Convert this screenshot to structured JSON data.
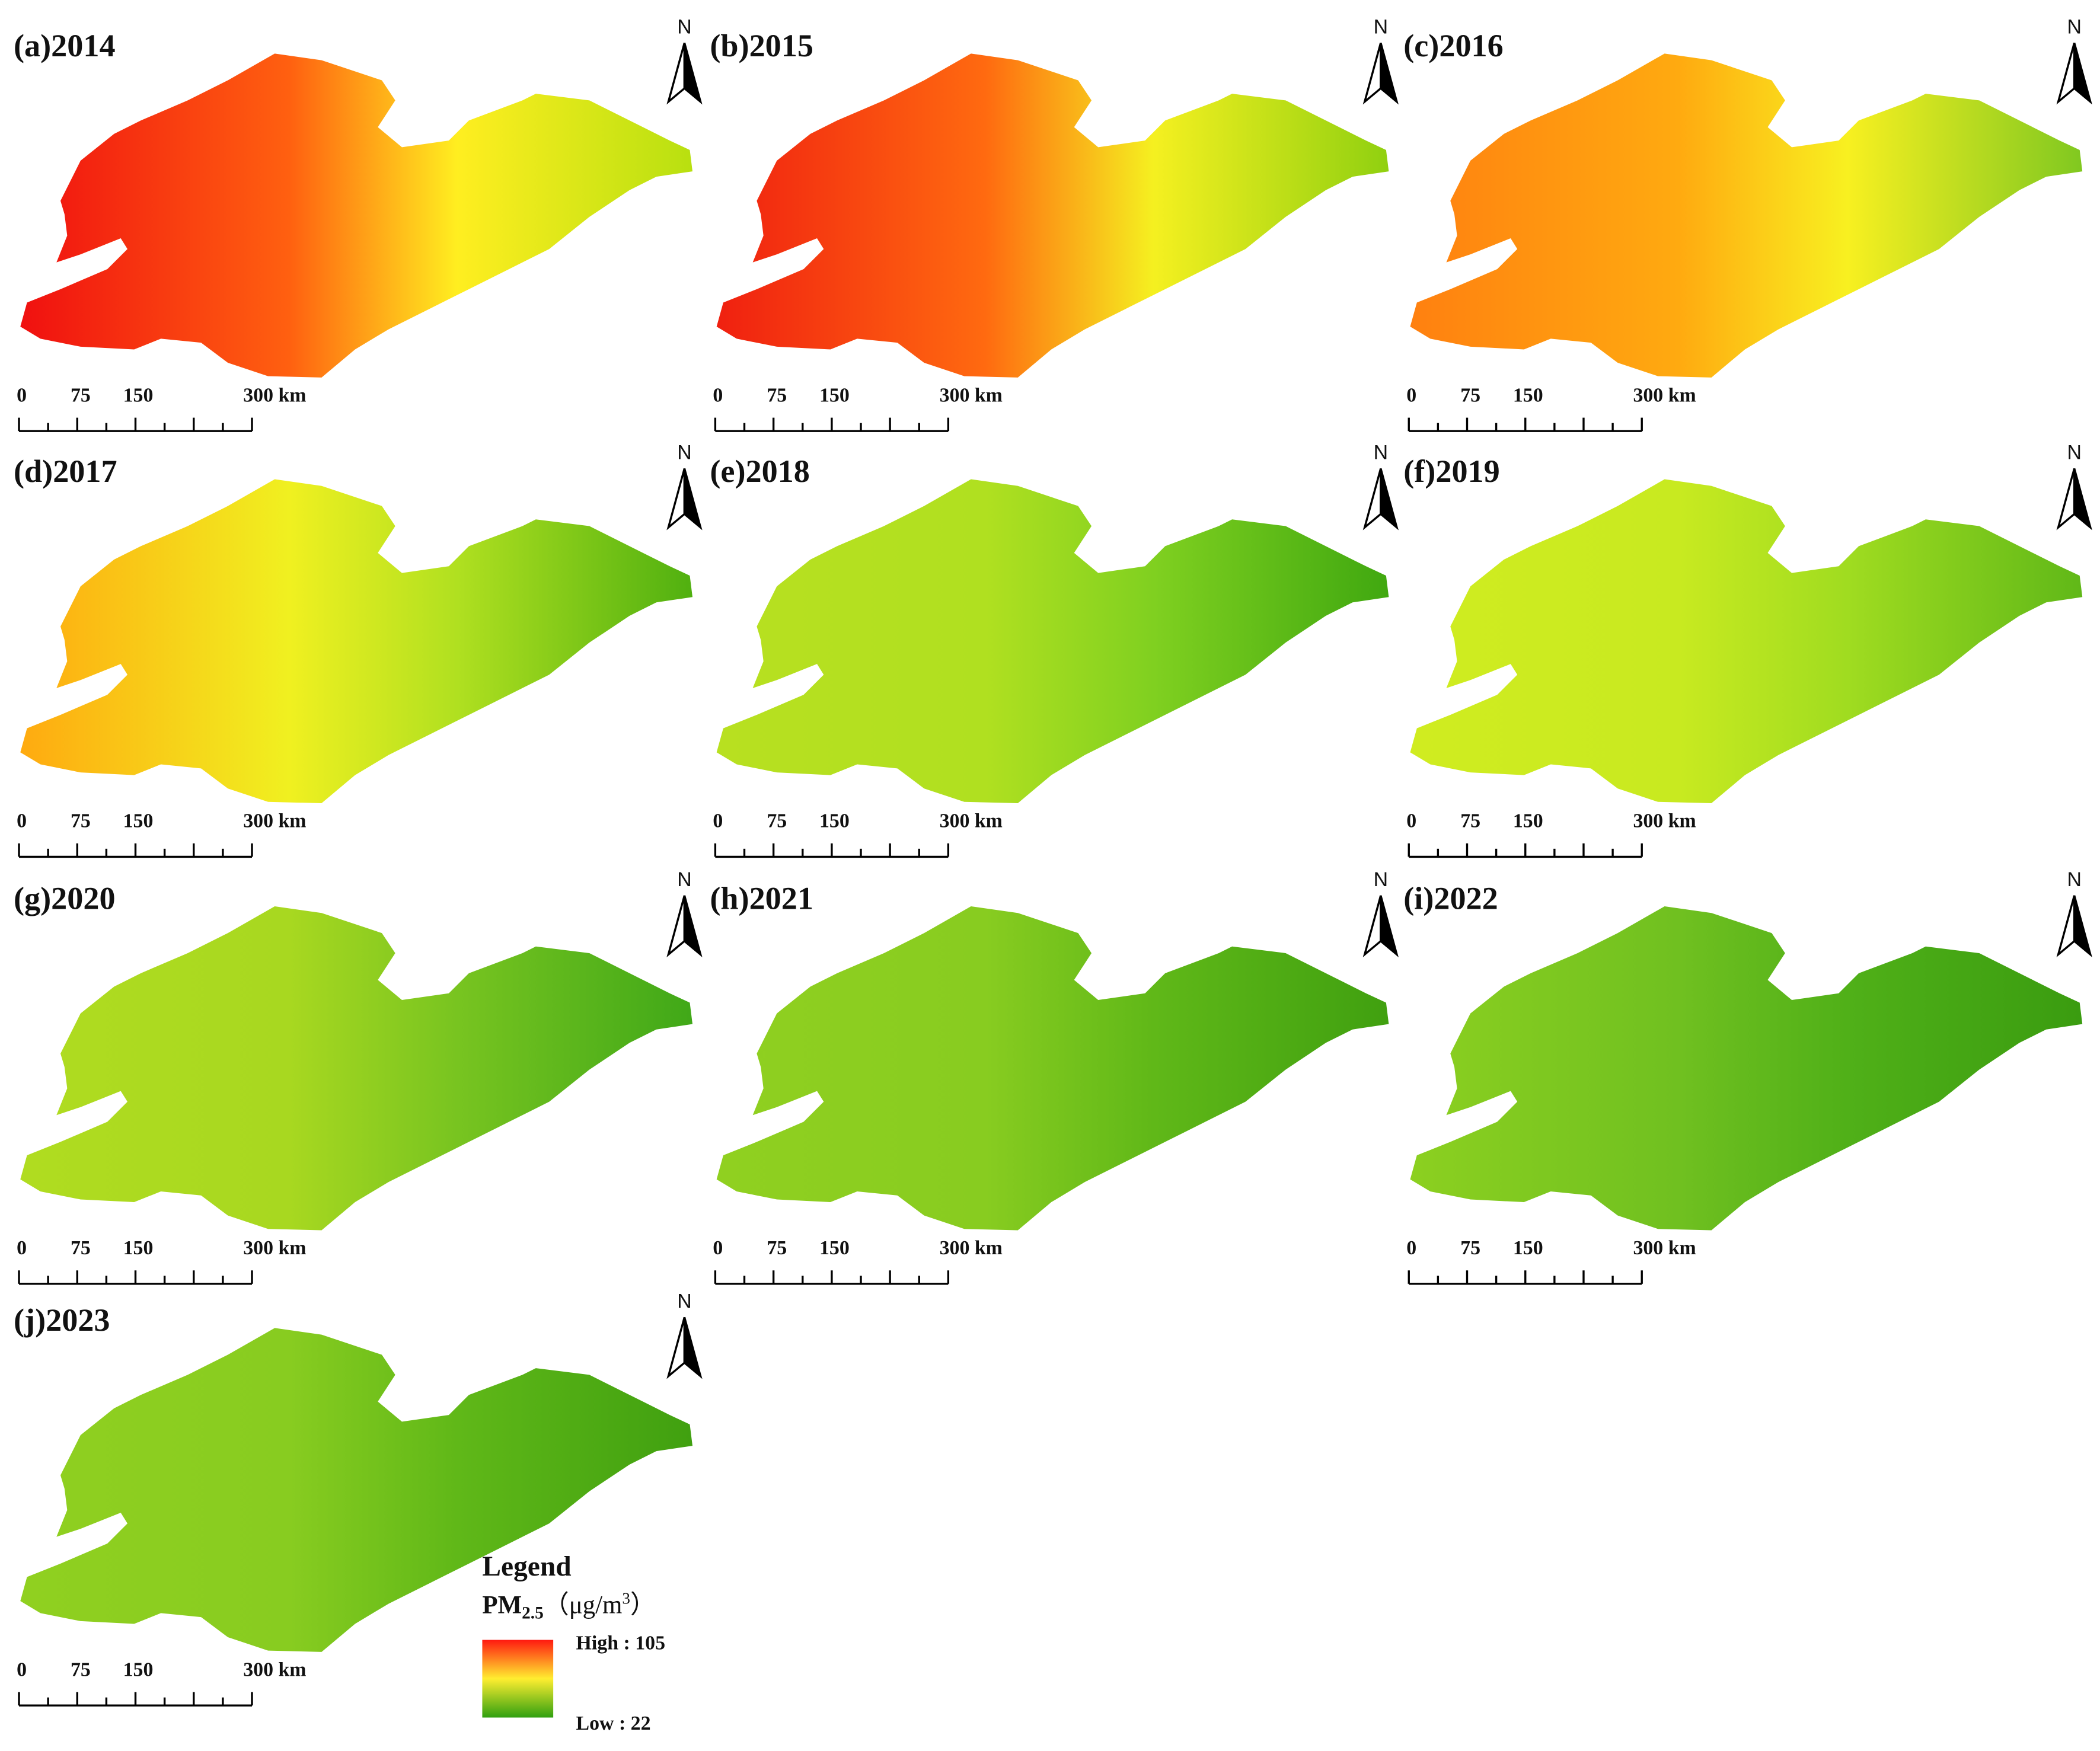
{
  "panels": [
    {
      "label": "(a)2014",
      "colors": [
        "#f01010",
        "#ff6010",
        "#ffee20",
        "#b8e010"
      ]
    },
    {
      "label": "(b)2015",
      "colors": [
        "#f02010",
        "#ff6a10",
        "#f5f020",
        "#90d010"
      ]
    },
    {
      "label": "(c)2016",
      "colors": [
        "#ff8010",
        "#ffaa10",
        "#f8f020",
        "#80c820"
      ]
    },
    {
      "label": "(d)2017",
      "colors": [
        "#ffaa10",
        "#f0f020",
        "#b0e020",
        "#50b010"
      ]
    },
    {
      "label": "(e)2018",
      "colors": [
        "#b8e020",
        "#b0e020",
        "#80d020",
        "#40a810"
      ]
    },
    {
      "label": "(f)2019",
      "colors": [
        "#d0ec20",
        "#c8ea20",
        "#a0dc20",
        "#60b818"
      ]
    },
    {
      "label": "(g)2020",
      "colors": [
        "#b0dc20",
        "#a8d820",
        "#78c420",
        "#40a818"
      ]
    },
    {
      "label": "(h)2021",
      "colors": [
        "#90d020",
        "#88cc20",
        "#60b818",
        "#40a010"
      ]
    },
    {
      "label": "(i)2022",
      "colors": [
        "#8cd020",
        "#70c020",
        "#50b018",
        "#3a9c10"
      ]
    },
    {
      "label": "(j)2023",
      "colors": [
        "#90d020",
        "#88cc20",
        "#60b818",
        "#40a010"
      ]
    }
  ],
  "north": "N",
  "scale_bar": {
    "labels": [
      "0",
      "75",
      "150",
      "300 km"
    ]
  },
  "legend": {
    "title": "Legend",
    "unit_base": "PM",
    "unit_sub": "2.5",
    "unit_open": "（μg/m",
    "unit_sup": "3",
    "unit_close": "）",
    "high": "High : 105",
    "low": "Low : 22",
    "colors": [
      "#ff1a10",
      "#ffee30",
      "#30a010"
    ]
  }
}
